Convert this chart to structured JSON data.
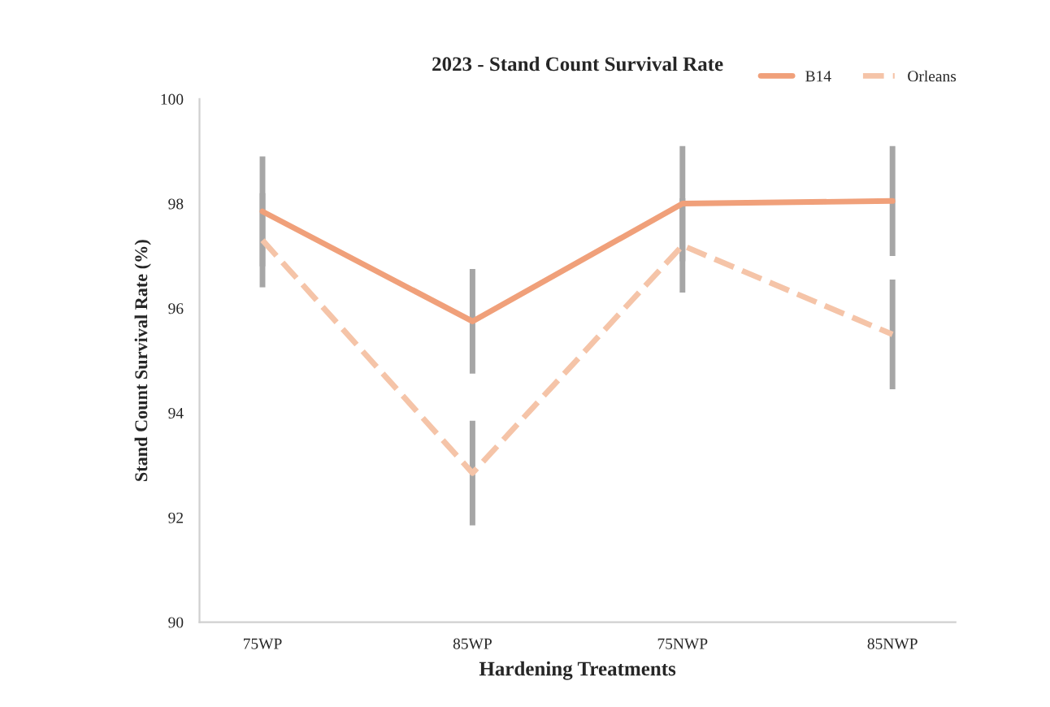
{
  "chart_data": {
    "type": "line",
    "title": "2023 - Stand Count Survival Rate",
    "xlabel": "Hardening Treatments",
    "ylabel": "Stand Count Survival Rate (%)",
    "categories": [
      "75WP",
      "85WP",
      "75NWP",
      "85NWP"
    ],
    "series": [
      {
        "name": "B14",
        "color": "#f0a07a",
        "line_style": "solid",
        "values": [
          97.85,
          95.75,
          98.0,
          98.05
        ],
        "errors": [
          1.05,
          1.0,
          1.1,
          1.05
        ]
      },
      {
        "name": "Orleans",
        "color": "#f5c4a8",
        "line_style": "dashed",
        "values": [
          97.3,
          92.85,
          97.2,
          95.5
        ],
        "errors": [
          0.9,
          1.0,
          0.9,
          1.05
        ]
      }
    ],
    "ylim": [
      90,
      100
    ],
    "yticks": [
      90,
      92,
      94,
      96,
      98,
      100
    ],
    "grid": false,
    "legend": "top right",
    "marker": "none"
  }
}
